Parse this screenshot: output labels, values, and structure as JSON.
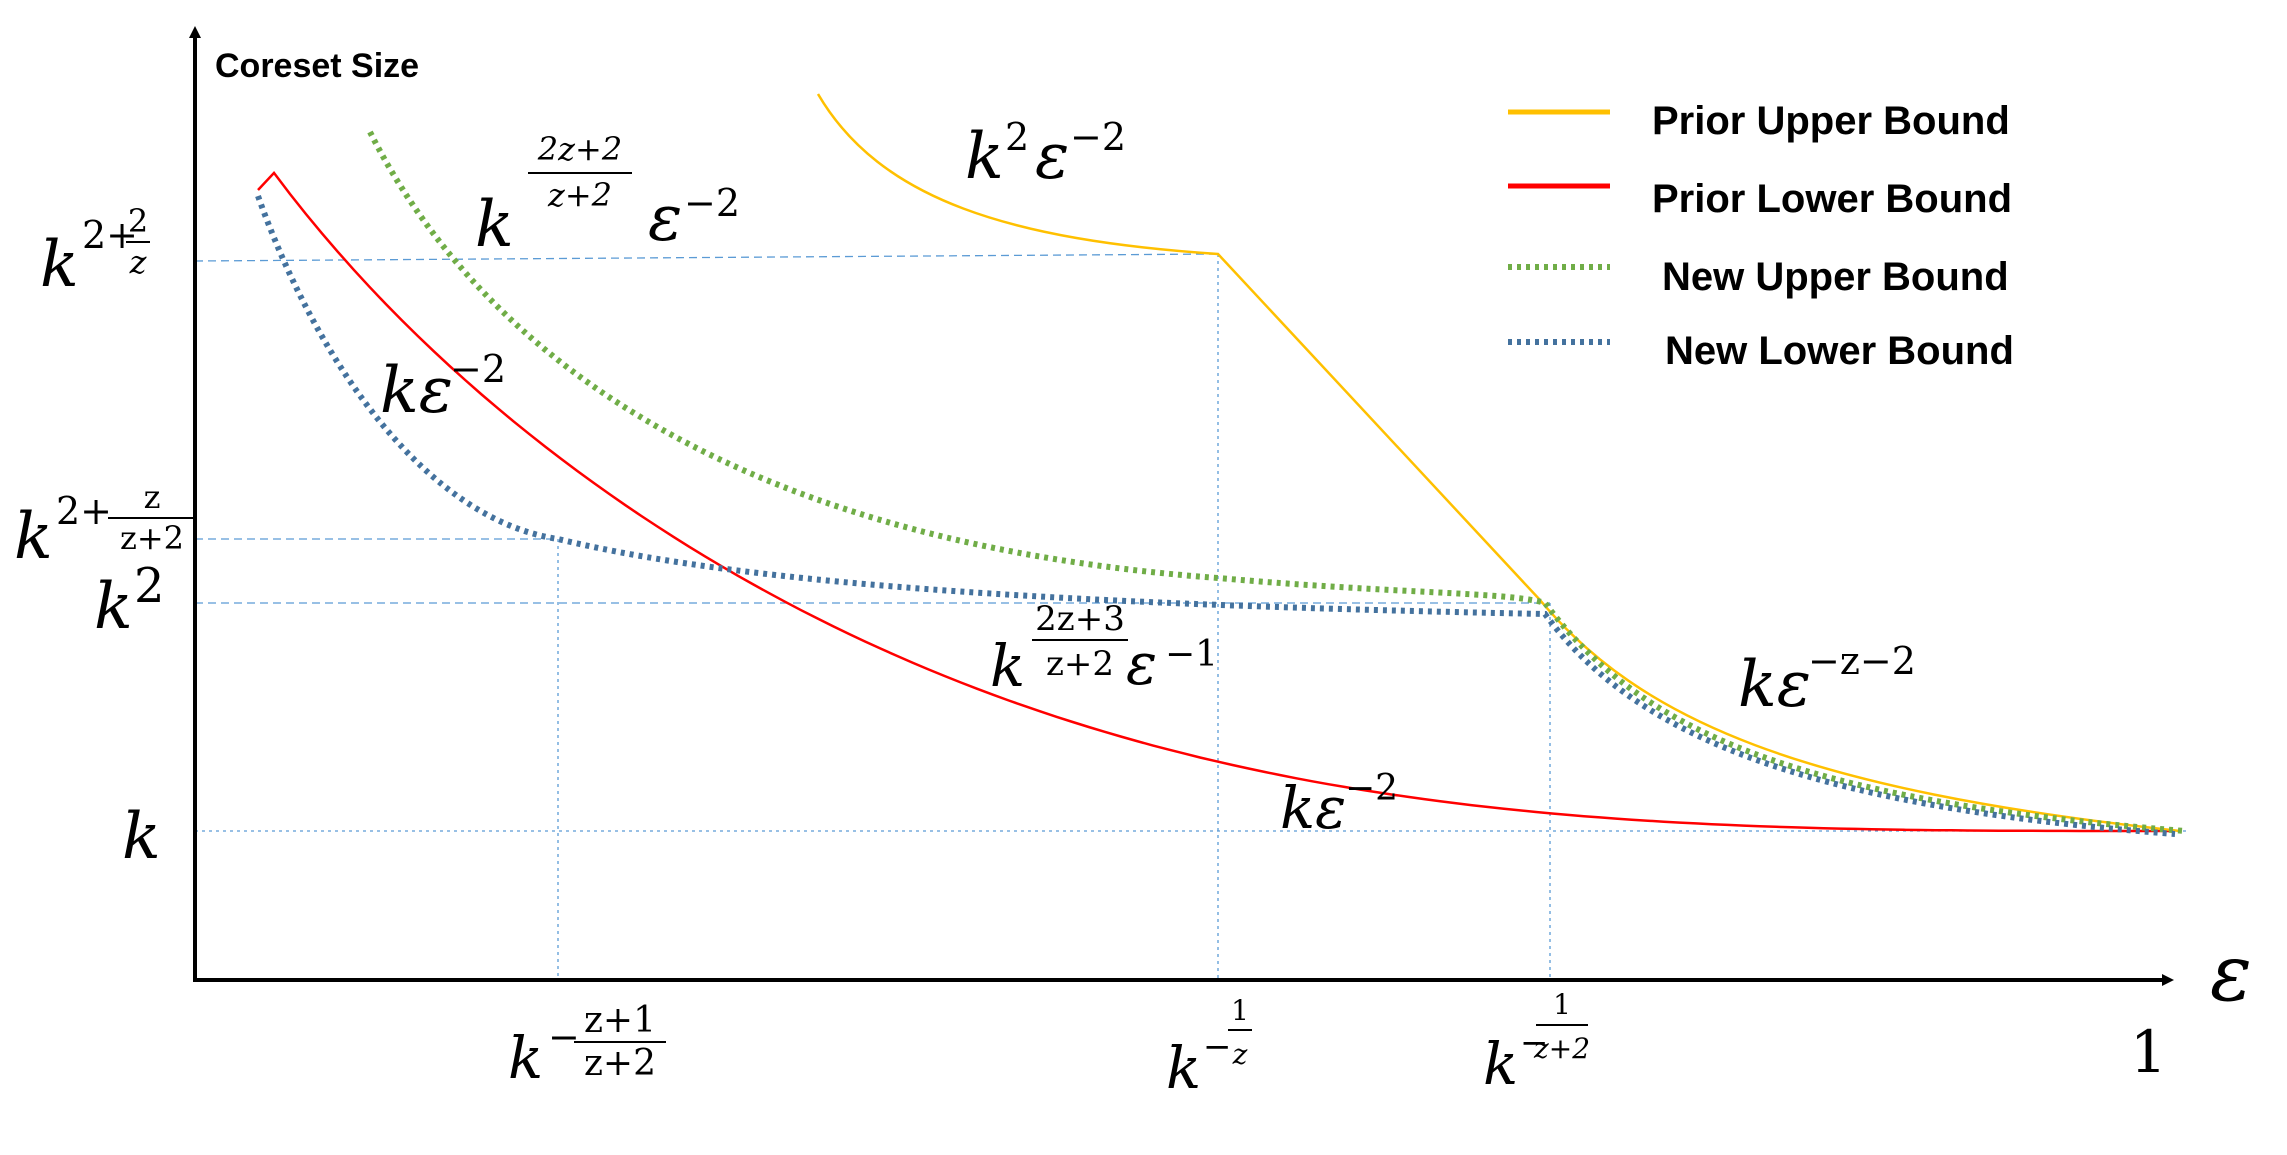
{
  "chart_data": {
    "type": "line",
    "title": "",
    "ylabel": "Coreset Size",
    "xlabel": "ε",
    "x_end_label": "1",
    "legend_position": "top-right",
    "grid": false,
    "y_ticks": [
      {
        "base": "k",
        "exp": "2+",
        "frac_num": "2",
        "frac_den": "z"
      },
      {
        "base": "k",
        "exp": "2+",
        "frac_num": "z",
        "frac_den": "z+2"
      },
      {
        "base": "k",
        "exp": "2"
      },
      {
        "base": "k",
        "exp": ""
      }
    ],
    "x_ticks": [
      {
        "base": "k",
        "sign": "−",
        "frac_num": "z+1",
        "frac_den": "z+2"
      },
      {
        "base": "k",
        "sign": "−",
        "frac_num": "1",
        "frac_den": "z"
      },
      {
        "base": "k",
        "sign": "−",
        "frac_num": "1",
        "frac_den": "z+2"
      }
    ],
    "series": [
      {
        "name": "Prior Upper Bound",
        "color": "#FFC000",
        "style": "solid"
      },
      {
        "name": "Prior Lower Bound",
        "color": "#FF0000",
        "style": "solid"
      },
      {
        "name": "New Upper Bound",
        "color": "#70AD47",
        "style": "dotted"
      },
      {
        "name": "New Lower Bound",
        "color": "#44729E",
        "style": "dotted"
      }
    ],
    "annotations": [
      {
        "id": "a1",
        "base": "k",
        "exp": "2",
        "mid": "ε",
        "exp2": "−2"
      },
      {
        "id": "a2",
        "base": "k",
        "frac_num": "2z+2",
        "frac_den": "z+2",
        "mid": "ε",
        "exp2": "−2"
      },
      {
        "id": "a3",
        "base": "kε",
        "exp": "−2"
      },
      {
        "id": "a4",
        "base": "k",
        "frac_num": "2z+3",
        "frac_den": "z+2",
        "mid": "ε",
        "exp2": "−1"
      },
      {
        "id": "a5",
        "base": "kε",
        "exp": "−z−2"
      },
      {
        "id": "a6",
        "base": "kε",
        "exp": "−2"
      }
    ]
  }
}
